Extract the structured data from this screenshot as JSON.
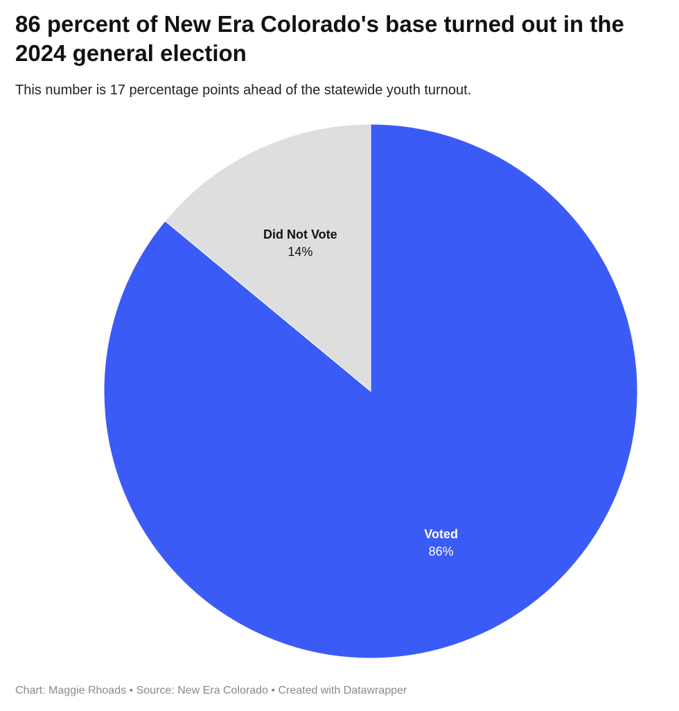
{
  "chart_data": {
    "type": "pie",
    "title": "86 percent of New Era Colorado's base turned out in the 2024 general election",
    "subtitle": "This number is 17 percentage points ahead of the statewide youth turnout.",
    "slices": [
      {
        "label": "Voted",
        "value": 86,
        "display": "86%",
        "color": "#3b5bf7",
        "label_color": "#ffffff"
      },
      {
        "label": "Did Not Vote",
        "value": 14,
        "display": "14%",
        "color": "#dedede",
        "label_color": "#111111"
      }
    ]
  },
  "footer": {
    "credit": "Chart: Maggie Rhoads",
    "separator": "•",
    "source": "Source: New Era Colorado",
    "created_with": "Created with Datawrapper"
  }
}
